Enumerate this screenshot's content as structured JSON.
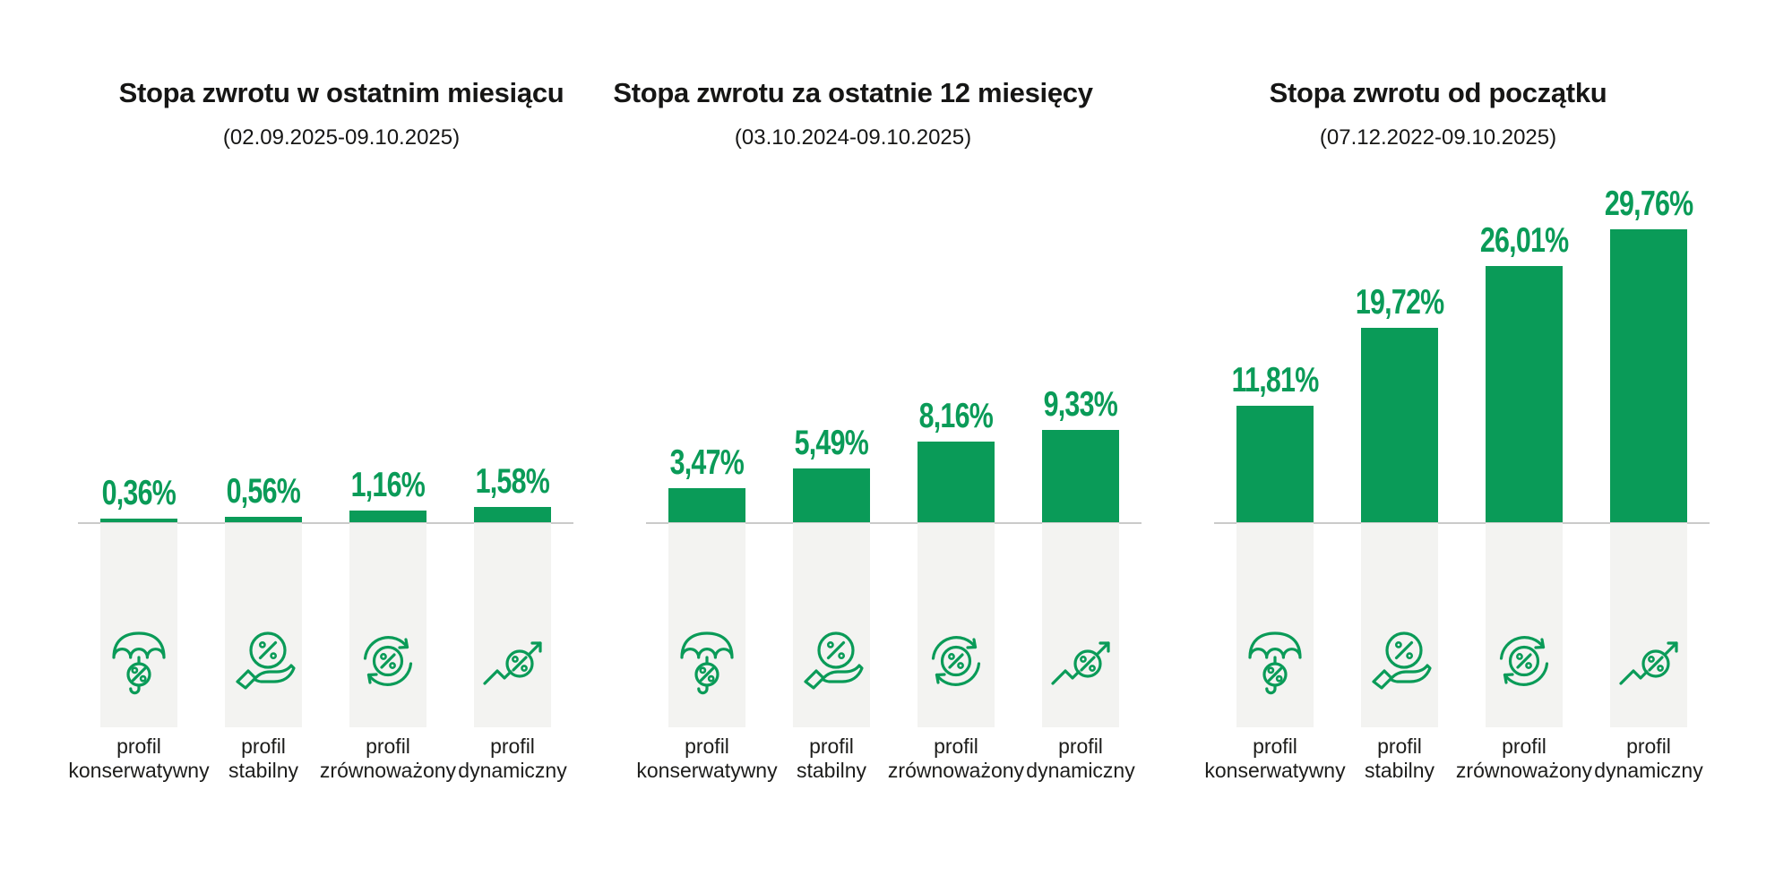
{
  "page": {
    "background": "#ffffff"
  },
  "colors": {
    "accent_green": "#0a9b58",
    "column_gray": "#f3f3f1",
    "axis_line": "#cbcbca",
    "title_text": "#161615",
    "label_text": "#1d1d1b"
  },
  "profiles": [
    {
      "label_line1": "profil",
      "label_line2": "konserwatywny",
      "icon": "umbrella-percent-icon"
    },
    {
      "label_line1": "profil",
      "label_line2": "stabilny",
      "icon": "hand-percent-icon"
    },
    {
      "label_line1": "profil",
      "label_line2": "zrównoważony",
      "icon": "refresh-percent-icon"
    },
    {
      "label_line1": "profil",
      "label_line2": "dynamiczny",
      "icon": "trend-up-percent-icon"
    }
  ],
  "chart_data": [
    {
      "type": "bar",
      "title": "Stopa zwrotu w ostatnim miesiącu",
      "subtitle": "(02.09.2025-09.10.2025)",
      "categories": [
        "profil konserwatywny",
        "profil stabilny",
        "profil zrównoważony",
        "profil dynamiczny"
      ],
      "values": [
        0.36,
        0.56,
        1.16,
        1.58
      ],
      "value_labels": [
        "0,36%",
        "0,56%",
        "1,16%",
        "1,58%"
      ],
      "xlabel": "",
      "ylabel": "",
      "ylim": [
        0,
        30
      ],
      "grid": false,
      "legend": false,
      "bar_color": "#0a9b58"
    },
    {
      "type": "bar",
      "title": "Stopa zwrotu za ostatnie 12 miesięcy",
      "subtitle": "(03.10.2024-09.10.2025)",
      "categories": [
        "profil konserwatywny",
        "profil stabilny",
        "profil zrównoważony",
        "profil dynamiczny"
      ],
      "values": [
        3.47,
        5.49,
        8.16,
        9.33
      ],
      "value_labels": [
        "3,47%",
        "5,49%",
        "8,16%",
        "9,33%"
      ],
      "xlabel": "",
      "ylabel": "",
      "ylim": [
        0,
        30
      ],
      "grid": false,
      "legend": false,
      "bar_color": "#0a9b58"
    },
    {
      "type": "bar",
      "title": "Stopa zwrotu od początku",
      "subtitle": "(07.12.2022-09.10.2025)",
      "categories": [
        "profil konserwatywny",
        "profil stabilny",
        "profil zrównoważony",
        "profil dynamiczny"
      ],
      "values": [
        11.81,
        19.72,
        26.01,
        29.76
      ],
      "value_labels": [
        "11,81%",
        "19,72%",
        "26,01%",
        "29,76%"
      ],
      "xlabel": "",
      "ylabel": "",
      "ylim": [
        0,
        30
      ],
      "grid": false,
      "legend": false,
      "bar_color": "#0a9b58"
    }
  ]
}
